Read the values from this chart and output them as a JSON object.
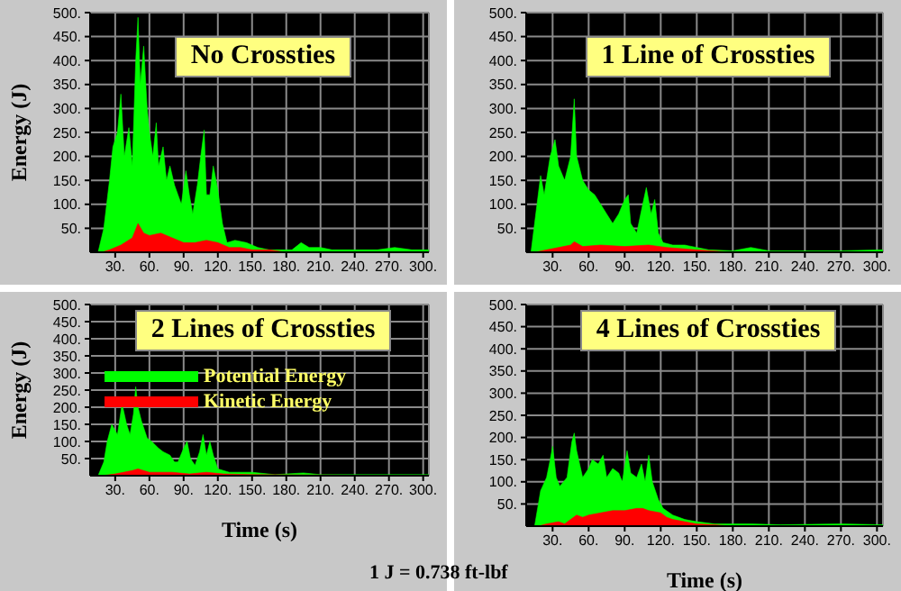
{
  "chart_data": [
    {
      "type": "area",
      "title": "No Crossties",
      "ylabel": "Energy (J)",
      "xlim": [
        8,
        305
      ],
      "ylim": [
        0,
        500
      ],
      "grid": true,
      "legend": false,
      "xticks": [
        {
          "value": 30,
          "label": "30."
        },
        {
          "value": 60,
          "label": "60."
        },
        {
          "value": 90,
          "label": "90."
        },
        {
          "value": 120,
          "label": "120."
        },
        {
          "value": 150,
          "label": "150."
        },
        {
          "value": 180,
          "label": "180."
        },
        {
          "value": 210,
          "label": "210."
        },
        {
          "value": 240,
          "label": "240."
        },
        {
          "value": 270,
          "label": "270."
        },
        {
          "value": 300,
          "label": "300."
        }
      ],
      "yticks": [
        {
          "value": 50,
          "label": "50."
        },
        {
          "value": 100,
          "label": "100."
        },
        {
          "value": 150,
          "label": "150."
        },
        {
          "value": 200,
          "label": "200."
        },
        {
          "value": 250,
          "label": "250."
        },
        {
          "value": 300,
          "label": "300."
        },
        {
          "value": 350,
          "label": "350."
        },
        {
          "value": 400,
          "label": "400."
        },
        {
          "value": 450,
          "label": "450."
        },
        {
          "value": 500,
          "label": "500."
        }
      ],
      "series": [
        {
          "color": "#00ff00",
          "x": [
            8,
            15,
            20,
            25,
            28,
            32,
            35,
            38,
            42,
            45,
            48,
            50,
            52,
            55,
            58,
            60,
            63,
            66,
            68,
            72,
            75,
            78,
            82,
            85,
            88,
            92,
            95,
            98,
            102,
            105,
            108,
            110,
            113,
            116,
            120,
            124,
            128,
            135,
            145,
            155,
            165,
            175,
            185,
            193,
            200,
            210,
            220,
            240,
            260,
            275,
            290,
            305
          ],
          "values": [
            0,
            0,
            50,
            150,
            220,
            250,
            330,
            200,
            260,
            180,
            400,
            490,
            350,
            430,
            300,
            250,
            200,
            270,
            180,
            220,
            150,
            180,
            140,
            120,
            100,
            170,
            120,
            80,
            140,
            200,
            255,
            120,
            120,
            180,
            130,
            60,
            20,
            25,
            20,
            10,
            5,
            5,
            5,
            20,
            10,
            10,
            5,
            5,
            5,
            10,
            5,
            5
          ]
        },
        {
          "color": "#ff0000",
          "x": [
            8,
            18,
            25,
            35,
            45,
            50,
            55,
            60,
            70,
            80,
            90,
            100,
            110,
            120,
            130,
            140,
            150,
            165,
            180,
            305
          ],
          "values": [
            0,
            0,
            5,
            15,
            30,
            60,
            40,
            35,
            40,
            30,
            20,
            20,
            25,
            20,
            10,
            10,
            5,
            5,
            0,
            0
          ]
        }
      ]
    },
    {
      "type": "area",
      "title": "1 Line of Crossties",
      "xlim": [
        8,
        305
      ],
      "ylim": [
        0,
        500
      ],
      "grid": true,
      "legend": false,
      "xticks": [
        {
          "value": 30,
          "label": "30."
        },
        {
          "value": 60,
          "label": "60."
        },
        {
          "value": 90,
          "label": "90."
        },
        {
          "value": 120,
          "label": "120."
        },
        {
          "value": 150,
          "label": "150."
        },
        {
          "value": 180,
          "label": "180."
        },
        {
          "value": 210,
          "label": "210."
        },
        {
          "value": 240,
          "label": "240."
        },
        {
          "value": 270,
          "label": "270."
        },
        {
          "value": 300,
          "label": "300."
        }
      ],
      "yticks": [
        {
          "value": 50,
          "label": "50."
        },
        {
          "value": 100,
          "label": "100."
        },
        {
          "value": 150,
          "label": "150."
        },
        {
          "value": 200,
          "label": "200."
        },
        {
          "value": 250,
          "label": "250."
        },
        {
          "value": 300,
          "label": "300."
        },
        {
          "value": 350,
          "label": "350."
        },
        {
          "value": 400,
          "label": "400."
        },
        {
          "value": 450,
          "label": "450."
        },
        {
          "value": 500,
          "label": "500."
        }
      ],
      "series": [
        {
          "color": "#00ff00",
          "x": [
            8,
            12,
            17,
            20,
            23,
            28,
            32,
            35,
            40,
            45,
            48,
            50,
            55,
            60,
            65,
            70,
            75,
            80,
            85,
            90,
            93,
            95,
            100,
            105,
            108,
            112,
            115,
            118,
            122,
            130,
            140,
            150,
            160,
            180,
            195,
            210,
            240,
            270,
            305
          ],
          "values": [
            0,
            0,
            100,
            160,
            120,
            200,
            235,
            180,
            150,
            200,
            320,
            200,
            150,
            130,
            120,
            100,
            80,
            60,
            80,
            110,
            120,
            60,
            40,
            100,
            135,
            80,
            110,
            40,
            20,
            15,
            15,
            10,
            5,
            3,
            10,
            3,
            3,
            3,
            5
          ]
        },
        {
          "color": "#ff0000",
          "x": [
            8,
            15,
            25,
            45,
            48,
            55,
            70,
            90,
            110,
            125,
            150,
            180,
            305
          ],
          "values": [
            0,
            0,
            5,
            15,
            22,
            12,
            15,
            12,
            15,
            10,
            5,
            0,
            0
          ]
        }
      ]
    },
    {
      "type": "area",
      "title": "2 Lines of Crossties",
      "ylabel": "Energy (J)",
      "xlabel": "Time (s)",
      "xlim": [
        8,
        305
      ],
      "ylim": [
        0,
        500
      ],
      "grid": true,
      "legend": "top left",
      "xticks": [
        {
          "value": 30,
          "label": "30."
        },
        {
          "value": 60,
          "label": "60."
        },
        {
          "value": 90,
          "label": "90."
        },
        {
          "value": 120,
          "label": "120."
        },
        {
          "value": 150,
          "label": "150."
        },
        {
          "value": 180,
          "label": "180."
        },
        {
          "value": 210,
          "label": "210."
        },
        {
          "value": 240,
          "label": "240."
        },
        {
          "value": 270,
          "label": "270."
        },
        {
          "value": 300,
          "label": "300."
        }
      ],
      "yticks": [
        {
          "value": 50,
          "label": "50."
        },
        {
          "value": 100,
          "label": "100."
        },
        {
          "value": 150,
          "label": "150."
        },
        {
          "value": 200,
          "label": "200."
        },
        {
          "value": 250,
          "label": "250."
        },
        {
          "value": 300,
          "label": "300."
        },
        {
          "value": 350,
          "label": "350."
        },
        {
          "value": 400,
          "label": "400."
        },
        {
          "value": 450,
          "label": "450."
        },
        {
          "value": 500,
          "label": "500."
        }
      ],
      "series": [
        {
          "name": "Potential Energy",
          "color": "#00ff00",
          "x": [
            8,
            15,
            20,
            23,
            27,
            32,
            36,
            40,
            43,
            46,
            48,
            50,
            53,
            58,
            62,
            68,
            72,
            78,
            82,
            85,
            90,
            93,
            96,
            100,
            104,
            107,
            110,
            113,
            116,
            120,
            130,
            150,
            170,
            195,
            210,
            240,
            305
          ],
          "values": [
            0,
            0,
            40,
            100,
            150,
            120,
            210,
            150,
            120,
            180,
            260,
            200,
            160,
            110,
            100,
            80,
            70,
            60,
            40,
            40,
            80,
            100,
            50,
            30,
            70,
            120,
            60,
            100,
            60,
            20,
            10,
            10,
            3,
            8,
            3,
            3,
            3
          ]
        },
        {
          "name": "Kinetic Energy",
          "color": "#ff0000",
          "x": [
            8,
            18,
            30,
            45,
            50,
            60,
            80,
            95,
            110,
            125,
            150,
            305
          ],
          "values": [
            0,
            0,
            5,
            15,
            20,
            10,
            10,
            5,
            10,
            5,
            3,
            0
          ]
        }
      ]
    },
    {
      "type": "area",
      "title": "4 Lines of Crossties",
      "xlabel": "Time (s)",
      "xlim": [
        8,
        305
      ],
      "ylim": [
        0,
        500
      ],
      "grid": true,
      "legend": false,
      "annotations": [
        "1 J = 0.738 ft-lbf"
      ],
      "xticks": [
        {
          "value": 30,
          "label": "30."
        },
        {
          "value": 60,
          "label": "60."
        },
        {
          "value": 90,
          "label": "90."
        },
        {
          "value": 120,
          "label": "120."
        },
        {
          "value": 150,
          "label": "150."
        },
        {
          "value": 180,
          "label": "180."
        },
        {
          "value": 210,
          "label": "210."
        },
        {
          "value": 240,
          "label": "240."
        },
        {
          "value": 270,
          "label": "270."
        },
        {
          "value": 300,
          "label": "300."
        }
      ],
      "yticks": [
        {
          "value": 50,
          "label": "50."
        },
        {
          "value": 100,
          "label": "100."
        },
        {
          "value": 150,
          "label": "150."
        },
        {
          "value": 200,
          "label": "200."
        },
        {
          "value": 250,
          "label": "250."
        },
        {
          "value": 300,
          "label": "300."
        },
        {
          "value": 350,
          "label": "350."
        },
        {
          "value": 400,
          "label": "400."
        },
        {
          "value": 450,
          "label": "450."
        },
        {
          "value": 500,
          "label": "500."
        }
      ],
      "series": [
        {
          "color": "#00ff00",
          "x": [
            8,
            15,
            20,
            25,
            28,
            30,
            33,
            36,
            42,
            46,
            48,
            50,
            55,
            60,
            63,
            68,
            72,
            75,
            80,
            85,
            88,
            92,
            95,
            100,
            104,
            107,
            110,
            113,
            118,
            122,
            130,
            140,
            150,
            165,
            195,
            220,
            270,
            305
          ],
          "values": [
            0,
            0,
            80,
            110,
            150,
            180,
            110,
            90,
            110,
            190,
            210,
            170,
            110,
            130,
            150,
            140,
            160,
            110,
            130,
            120,
            100,
            170,
            120,
            110,
            140,
            100,
            160,
            100,
            60,
            40,
            25,
            15,
            10,
            5,
            5,
            3,
            5,
            3
          ]
        },
        {
          "color": "#ff0000",
          "x": [
            8,
            18,
            25,
            35,
            40,
            45,
            50,
            55,
            60,
            70,
            80,
            90,
            100,
            105,
            110,
            120,
            125,
            130,
            140,
            150,
            165,
            180,
            305
          ],
          "values": [
            0,
            0,
            5,
            10,
            5,
            15,
            25,
            20,
            25,
            30,
            35,
            35,
            40,
            40,
            35,
            30,
            20,
            15,
            10,
            5,
            3,
            0,
            0
          ]
        }
      ]
    }
  ]
}
